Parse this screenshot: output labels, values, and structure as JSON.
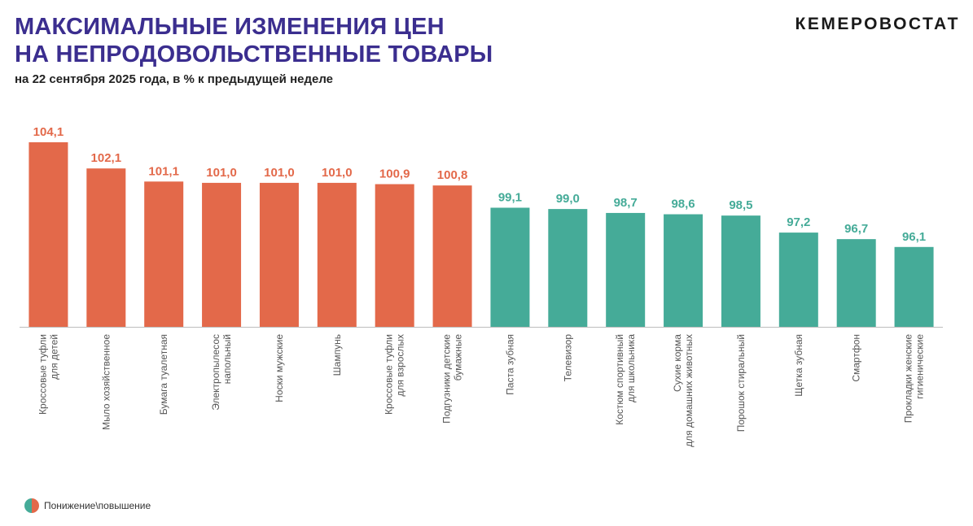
{
  "header": {
    "title_line1": "МАКСИМАЛЬНЫЕ ИЗМЕНЕНИЯ ЦЕН",
    "title_line2": "НА НЕПРОДОВОЛЬСТВЕННЫЕ ТОВАРЫ",
    "subtitle": "на 22 сентября 2025 года, в % к предыдущей неделе",
    "brand": "КЕМЕРОВОСТАТ"
  },
  "legend": {
    "label": "Понижение\\повышение"
  },
  "colors": {
    "increase": "#e3694a",
    "decrease": "#45ab98",
    "title": "#3b2e8f"
  },
  "chart_data": {
    "type": "bar",
    "title": "",
    "xlabel": "",
    "ylabel": "",
    "ylim": [
      90,
      104.1
    ],
    "grid": false,
    "legend": "bottom-left",
    "categories": [
      [
        "Кроссовые туфли",
        "для детей"
      ],
      [
        "Мыло хозяйственное"
      ],
      [
        "Бумага туалетная"
      ],
      [
        "Электропылесос",
        "напольный"
      ],
      [
        "Носки мужские"
      ],
      [
        "Шампунь"
      ],
      [
        "Кроссовые туфли",
        "для взрослых"
      ],
      [
        "Подгузники детские",
        "бумажные"
      ],
      [
        "Паста зубная"
      ],
      [
        "Телевизор"
      ],
      [
        "Костюм спортивный",
        "для школьника"
      ],
      [
        "Сухие корма",
        "для домашних животных"
      ],
      [
        "Порошок стиральный"
      ],
      [
        "Щетка зубная"
      ],
      [
        "Смартфон"
      ],
      [
        "Прокладки женские",
        "гигиенические"
      ]
    ],
    "values": [
      104.1,
      102.1,
      101.1,
      101.0,
      101.0,
      101.0,
      100.9,
      100.8,
      99.1,
      99.0,
      98.7,
      98.6,
      98.5,
      97.2,
      96.7,
      96.1
    ],
    "value_labels": [
      "104,1",
      "102,1",
      "101,1",
      "101,0",
      "101,0",
      "101,0",
      "100,9",
      "100,8",
      "99,1",
      "99,0",
      "98,7",
      "98,6",
      "98,5",
      "97,2",
      "96,7",
      "96,1"
    ]
  }
}
